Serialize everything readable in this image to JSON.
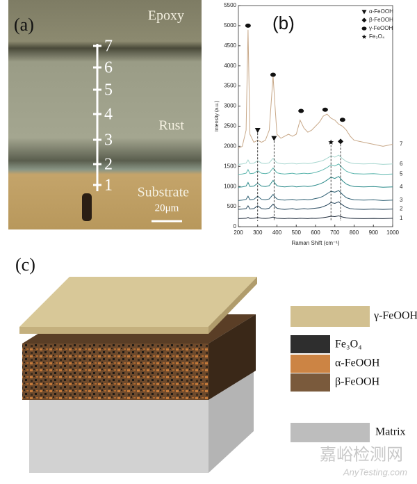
{
  "panel_a": {
    "label": "(a)",
    "epoxy": "Epoxy",
    "rust": "Rust",
    "substrate": "Substrate",
    "scale_bar": "20μm",
    "points": [
      "1",
      "2",
      "3",
      "4",
      "5",
      "6",
      "7"
    ]
  },
  "chart_data": {
    "type": "line",
    "label": "(b)",
    "x_label": "Raman Shift (cm⁻¹)",
    "y_label": "Intensity (a.u.)",
    "x": [
      200,
      220,
      240,
      250,
      260,
      280,
      300,
      320,
      340,
      360,
      380,
      390,
      400,
      420,
      440,
      460,
      480,
      500,
      520,
      540,
      560,
      580,
      600,
      620,
      640,
      660,
      680,
      700,
      720,
      740,
      760,
      780,
      800,
      850,
      900,
      950,
      1000
    ],
    "xlim": [
      200,
      1000
    ],
    "xticks": [
      200,
      300,
      400,
      500,
      600,
      700,
      800,
      900,
      1000
    ],
    "ylim": [
      0,
      5500
    ],
    "yticks": [
      0,
      500,
      1000,
      1500,
      2000,
      2500,
      3000,
      3500,
      4000,
      4500,
      5000,
      5500
    ],
    "series": [
      {
        "name": "1",
        "color": "#1c2838",
        "values": [
          200,
          205,
          210,
          230,
          205,
          210,
          230,
          210,
          205,
          215,
          240,
          225,
          210,
          205,
          200,
          210,
          205,
          200,
          210,
          205,
          200,
          210,
          205,
          215,
          225,
          240,
          260,
          250,
          270,
          240,
          220,
          210,
          205,
          200,
          205,
          200,
          210
        ]
      },
      {
        "name": "2",
        "color": "#26465c",
        "values": [
          430,
          440,
          450,
          520,
          440,
          450,
          520,
          450,
          440,
          460,
          560,
          500,
          460,
          440,
          430,
          440,
          450,
          430,
          440,
          450,
          440,
          450,
          460,
          470,
          500,
          540,
          600,
          580,
          620,
          540,
          480,
          450,
          440,
          430,
          440,
          430,
          440
        ]
      },
      {
        "name": "3",
        "color": "#2c5e72",
        "values": [
          650,
          660,
          680,
          760,
          670,
          680,
          760,
          680,
          670,
          690,
          800,
          740,
          690,
          670,
          660,
          670,
          680,
          660,
          670,
          680,
          670,
          680,
          700,
          720,
          760,
          820,
          880,
          860,
          900,
          800,
          720,
          690,
          670,
          660,
          670,
          650,
          660
        ]
      },
      {
        "name": "4",
        "color": "#2a8a8a",
        "values": [
          980,
          990,
          1010,
          1100,
          1000,
          1010,
          1080,
          1010,
          1000,
          1020,
          1150,
          1080,
          1020,
          1000,
          990,
          1000,
          1010,
          990,
          1000,
          1010,
          1000,
          1010,
          1030,
          1060,
          1100,
          1160,
          1230,
          1200,
          1250,
          1140,
          1060,
          1020,
          1000,
          990,
          1000,
          980,
          990
        ]
      },
      {
        "name": "5",
        "color": "#5db6ae",
        "values": [
          1300,
          1310,
          1330,
          1420,
          1320,
          1330,
          1390,
          1330,
          1320,
          1340,
          1460,
          1400,
          1340,
          1320,
          1310,
          1320,
          1330,
          1310,
          1320,
          1330,
          1320,
          1330,
          1350,
          1380,
          1420,
          1470,
          1540,
          1510,
          1560,
          1460,
          1380,
          1340,
          1320,
          1310,
          1320,
          1300,
          1310
        ]
      },
      {
        "name": "6",
        "color": "#a6d6cf",
        "values": [
          1550,
          1560,
          1580,
          1660,
          1570,
          1580,
          1640,
          1580,
          1570,
          1590,
          1700,
          1640,
          1590,
          1570,
          1560,
          1570,
          1580,
          1560,
          1570,
          1580,
          1570,
          1580,
          1600,
          1620,
          1650,
          1700,
          1760,
          1730,
          1780,
          1690,
          1620,
          1590,
          1570,
          1560,
          1570,
          1550,
          1560
        ]
      },
      {
        "name": "7",
        "color": "#c8a888",
        "values": [
          1950,
          2000,
          2400,
          4900,
          2300,
          2100,
          2150,
          2100,
          2150,
          2400,
          3750,
          3000,
          2300,
          2200,
          2250,
          2300,
          2250,
          2300,
          2650,
          2450,
          2350,
          2400,
          2500,
          2600,
          2750,
          2800,
          2700,
          2650,
          2550,
          2500,
          2400,
          2250,
          2150,
          2100,
          2050,
          2000,
          2050
        ]
      }
    ],
    "legend": [
      {
        "label": "α-FeOOH",
        "symbol": "triangle"
      },
      {
        "label": "β-FeOOH",
        "symbol": "diamond"
      },
      {
        "label": "γ-FeOOH",
        "symbol": "circle"
      },
      {
        "label": "Fe₃O₄",
        "symbol": "star"
      }
    ],
    "peak_markers": [
      {
        "x": 250,
        "y": 5000,
        "symbol": "circle"
      },
      {
        "x": 380,
        "y": 3780,
        "symbol": "circle"
      },
      {
        "x": 525,
        "y": 2880,
        "symbol": "circle"
      },
      {
        "x": 650,
        "y": 2910,
        "symbol": "circle"
      },
      {
        "x": 740,
        "y": 2660,
        "symbol": "circle"
      },
      {
        "x": 300,
        "y": 2400,
        "symbol": "triangle"
      },
      {
        "x": 385,
        "y": 2200,
        "symbol": "triangle"
      },
      {
        "x": 680,
        "y": 2100,
        "symbol": "star"
      },
      {
        "x": 730,
        "y": 2120,
        "symbol": "diamond"
      }
    ]
  },
  "panel_c": {
    "label": "(c)",
    "legend": [
      "γ-FeOOH",
      "Fe₃O₄",
      "α-FeOOH",
      "β-FeOOH",
      "Matrix"
    ]
  },
  "watermark": {
    "cn": "嘉峪检测网",
    "en": "AnyTesting.com"
  }
}
